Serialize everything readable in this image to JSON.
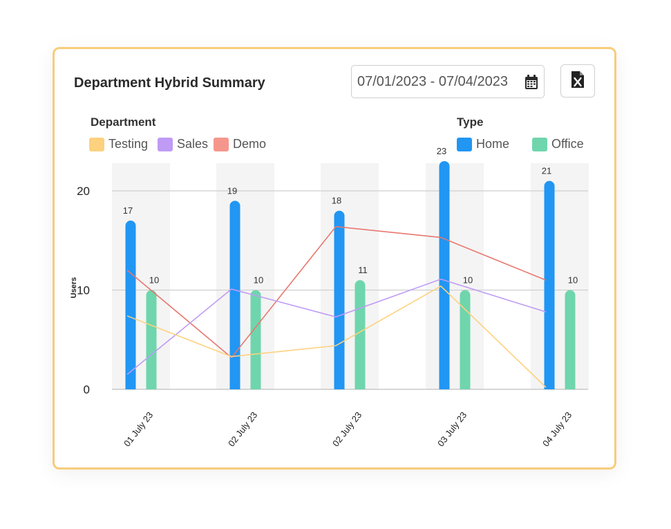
{
  "header": {
    "title": "Department Hybrid Summary",
    "date_range": "07/01/2023 - 07/04/2023",
    "calendar_icon": "calendar-icon",
    "export_icon": "excel-export-icon"
  },
  "legend": {
    "department_title": "Department",
    "type_title": "Type",
    "departments": [
      {
        "label": "Testing",
        "color": "#fdd17e"
      },
      {
        "label": "Sales",
        "color": "#bf9bf5"
      },
      {
        "label": "Demo",
        "color": "#f5968c"
      }
    ],
    "types": [
      {
        "label": "Home",
        "color": "#2196f3"
      },
      {
        "label": "Office",
        "color": "#6fd5ad"
      }
    ]
  },
  "chart_data": {
    "type": "bar",
    "categories": [
      "01 July 23",
      "02 July 23",
      "02 July 23",
      "03 July 23",
      "04 July 23"
    ],
    "ylabel": "Users",
    "ylim": [
      0,
      23
    ],
    "yticks": [
      0,
      10,
      20
    ],
    "series": [
      {
        "name": "Home",
        "kind": "bar",
        "color": "#2196f3",
        "values": [
          17,
          19,
          18,
          23,
          21
        ],
        "value_labels": [
          "17",
          "19",
          "18",
          "23",
          "21"
        ]
      },
      {
        "name": "Office",
        "kind": "bar",
        "color": "#6fd5ad",
        "values": [
          10,
          10,
          11,
          10,
          10
        ],
        "value_labels": [
          "10",
          "10",
          "11",
          "10",
          "10"
        ]
      },
      {
        "name": "Demo",
        "kind": "line",
        "color": "#e8776e",
        "values": [
          12,
          3.2,
          16.4,
          15.3,
          11
        ]
      },
      {
        "name": "Sales",
        "kind": "line",
        "color": "#bf9bf5",
        "values": [
          1.5,
          10.1,
          7.3,
          11.1,
          7.8
        ]
      },
      {
        "name": "Testing",
        "kind": "line",
        "color": "#fdd17e",
        "values": [
          7.4,
          3.3,
          4.4,
          10.4,
          0.2
        ]
      }
    ],
    "grid": true,
    "legend_position": "top"
  }
}
